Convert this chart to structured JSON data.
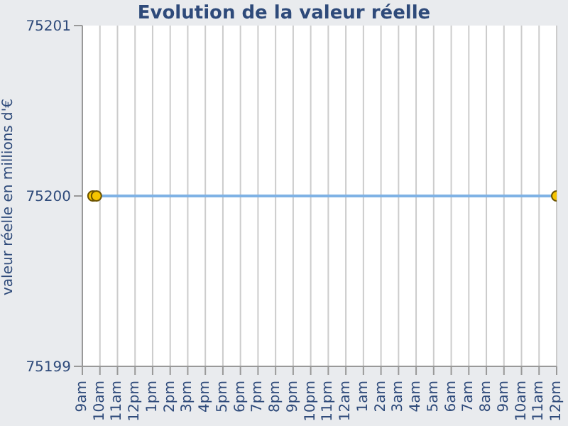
{
  "chart_data": {
    "type": "line",
    "title": "Evolution de la valeur réelle",
    "ylabel": "valeur réelle en millions d'€",
    "x": [
      "--01-01T09:36",
      "--01-01T09:48",
      "--01-02T12:00"
    ],
    "series": [
      {
        "color": "#7fb2e5",
        "values": [
          75200,
          75200,
          75200
        ]
      }
    ],
    "ylim": [
      75199,
      75201
    ],
    "yticks": [
      75199,
      75200,
      75201
    ],
    "xlim": [
      "--01-01T09:00",
      "--01-02T12:00"
    ],
    "xticks": [
      {
        "value": "--01-01T09:00",
        "label": "9am"
      },
      {
        "value": "--01-01T10:00",
        "label": "10am"
      },
      {
        "value": "--01-01T11:00",
        "label": "11am"
      },
      {
        "value": "--01-01T12:00",
        "label": "12pm"
      },
      {
        "value": "--01-01T13:00",
        "label": "1pm"
      },
      {
        "value": "--01-01T14:00",
        "label": "2pm"
      },
      {
        "value": "--01-01T15:00",
        "label": "3pm"
      },
      {
        "value": "--01-01T16:00",
        "label": "4pm"
      },
      {
        "value": "--01-01T17:00",
        "label": "5pm"
      },
      {
        "value": "--01-01T18:00",
        "label": "6pm"
      },
      {
        "value": "--01-01T19:00",
        "label": "7pm"
      },
      {
        "value": "--01-01T20:00",
        "label": "8pm"
      },
      {
        "value": "--01-01T21:00",
        "label": "9pm"
      },
      {
        "value": "--01-01T22:00",
        "label": "10pm"
      },
      {
        "value": "--01-01T23:00",
        "label": "11pm"
      },
      {
        "value": "--01-02T00:00",
        "label": "12am"
      },
      {
        "value": "--01-02T01:00",
        "label": "1am"
      },
      {
        "value": "--01-02T02:00",
        "label": "2am"
      },
      {
        "value": "--01-02T03:00",
        "label": "3am"
      },
      {
        "value": "--01-02T04:00",
        "label": "4am"
      },
      {
        "value": "--01-02T05:00",
        "label": "5am"
      },
      {
        "value": "--01-02T06:00",
        "label": "6am"
      },
      {
        "value": "--01-02T07:00",
        "label": "7am"
      },
      {
        "value": "--01-02T08:00",
        "label": "8am"
      },
      {
        "value": "--01-02T09:00",
        "label": "9am"
      },
      {
        "value": "--01-02T10:00",
        "label": "10am"
      },
      {
        "value": "--01-02T11:00",
        "label": "11am"
      },
      {
        "value": "--01-02T12:00",
        "label": "12pm"
      }
    ],
    "grid": "x",
    "marker": "circle",
    "line_style": "solid",
    "legend": false
  }
}
